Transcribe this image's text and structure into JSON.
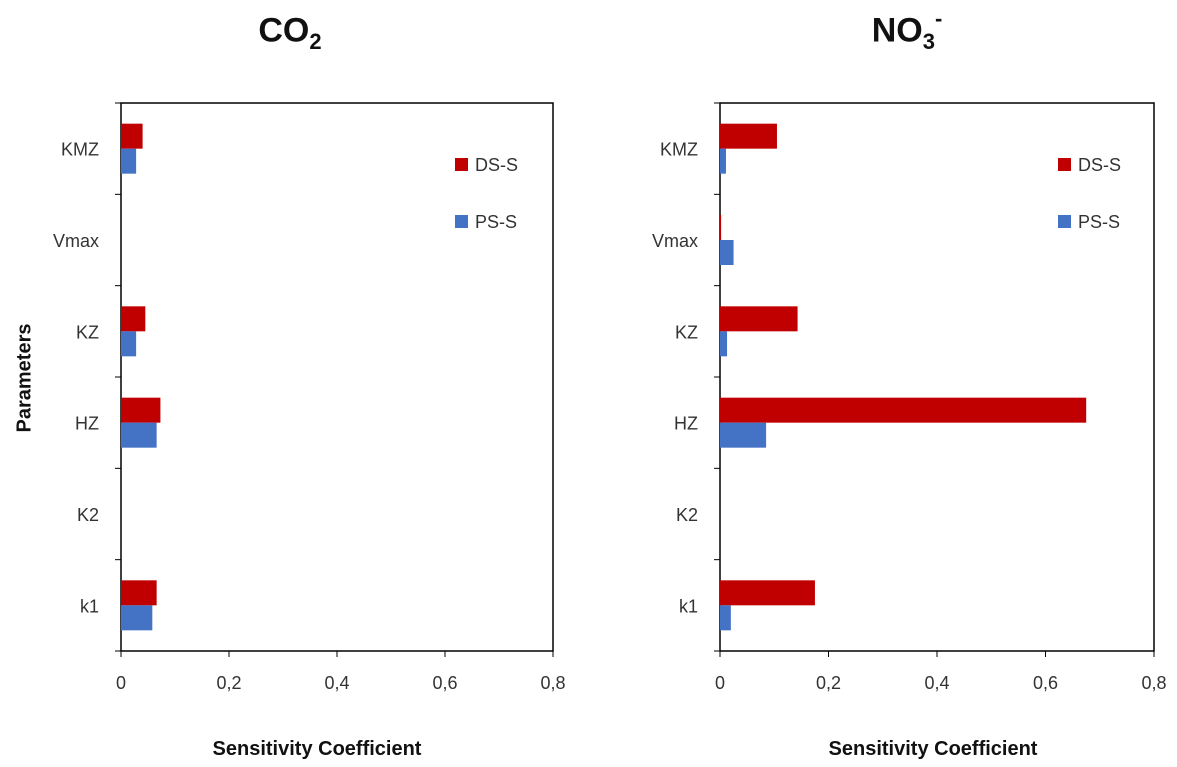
{
  "chart_data": [
    {
      "type": "bar",
      "orientation": "horizontal",
      "title_main": "CO",
      "title_sub": "2",
      "title_sup": "",
      "xlabel": "Sensitivity Coefficient",
      "ylabel": "Parameters",
      "categories": [
        "KMZ",
        "Vmax",
        "KZ",
        "HZ",
        "K2",
        "k1"
      ],
      "xlim": [
        0,
        0.8
      ],
      "xticks": [
        "0",
        "0,2",
        "0,4",
        "0,6",
        "0,8"
      ],
      "xtick_values": [
        0,
        0.2,
        0.4,
        0.6,
        0.8
      ],
      "legend_position": "top-right",
      "grid": false,
      "series": [
        {
          "name": "DS-S",
          "color": "#c00000",
          "values": [
            0.04,
            0.0,
            0.045,
            0.073,
            0.0,
            0.066
          ]
        },
        {
          "name": "PS-S",
          "color": "#4472c4",
          "values": [
            0.028,
            0.0,
            0.028,
            0.066,
            0.0,
            0.058
          ]
        }
      ]
    },
    {
      "type": "bar",
      "orientation": "horizontal",
      "title_main": "NO",
      "title_sub": "3",
      "title_sup": "-",
      "xlabel": "Sensitivity Coefficient",
      "ylabel": "",
      "categories": [
        "KMZ",
        "Vmax",
        "KZ",
        "HZ",
        "K2",
        "k1"
      ],
      "xlim": [
        0,
        0.8
      ],
      "xticks": [
        "0",
        "0,2",
        "0,4",
        "0,6",
        "0,8"
      ],
      "xtick_values": [
        0,
        0.2,
        0.4,
        0.6,
        0.8
      ],
      "legend_position": "top-right",
      "grid": false,
      "series": [
        {
          "name": "DS-S",
          "color": "#c00000",
          "values": [
            0.105,
            0.002,
            0.143,
            0.675,
            0.0,
            0.175
          ]
        },
        {
          "name": "PS-S",
          "color": "#4472c4",
          "values": [
            0.011,
            0.025,
            0.013,
            0.085,
            0.0,
            0.02
          ]
        }
      ]
    }
  ]
}
